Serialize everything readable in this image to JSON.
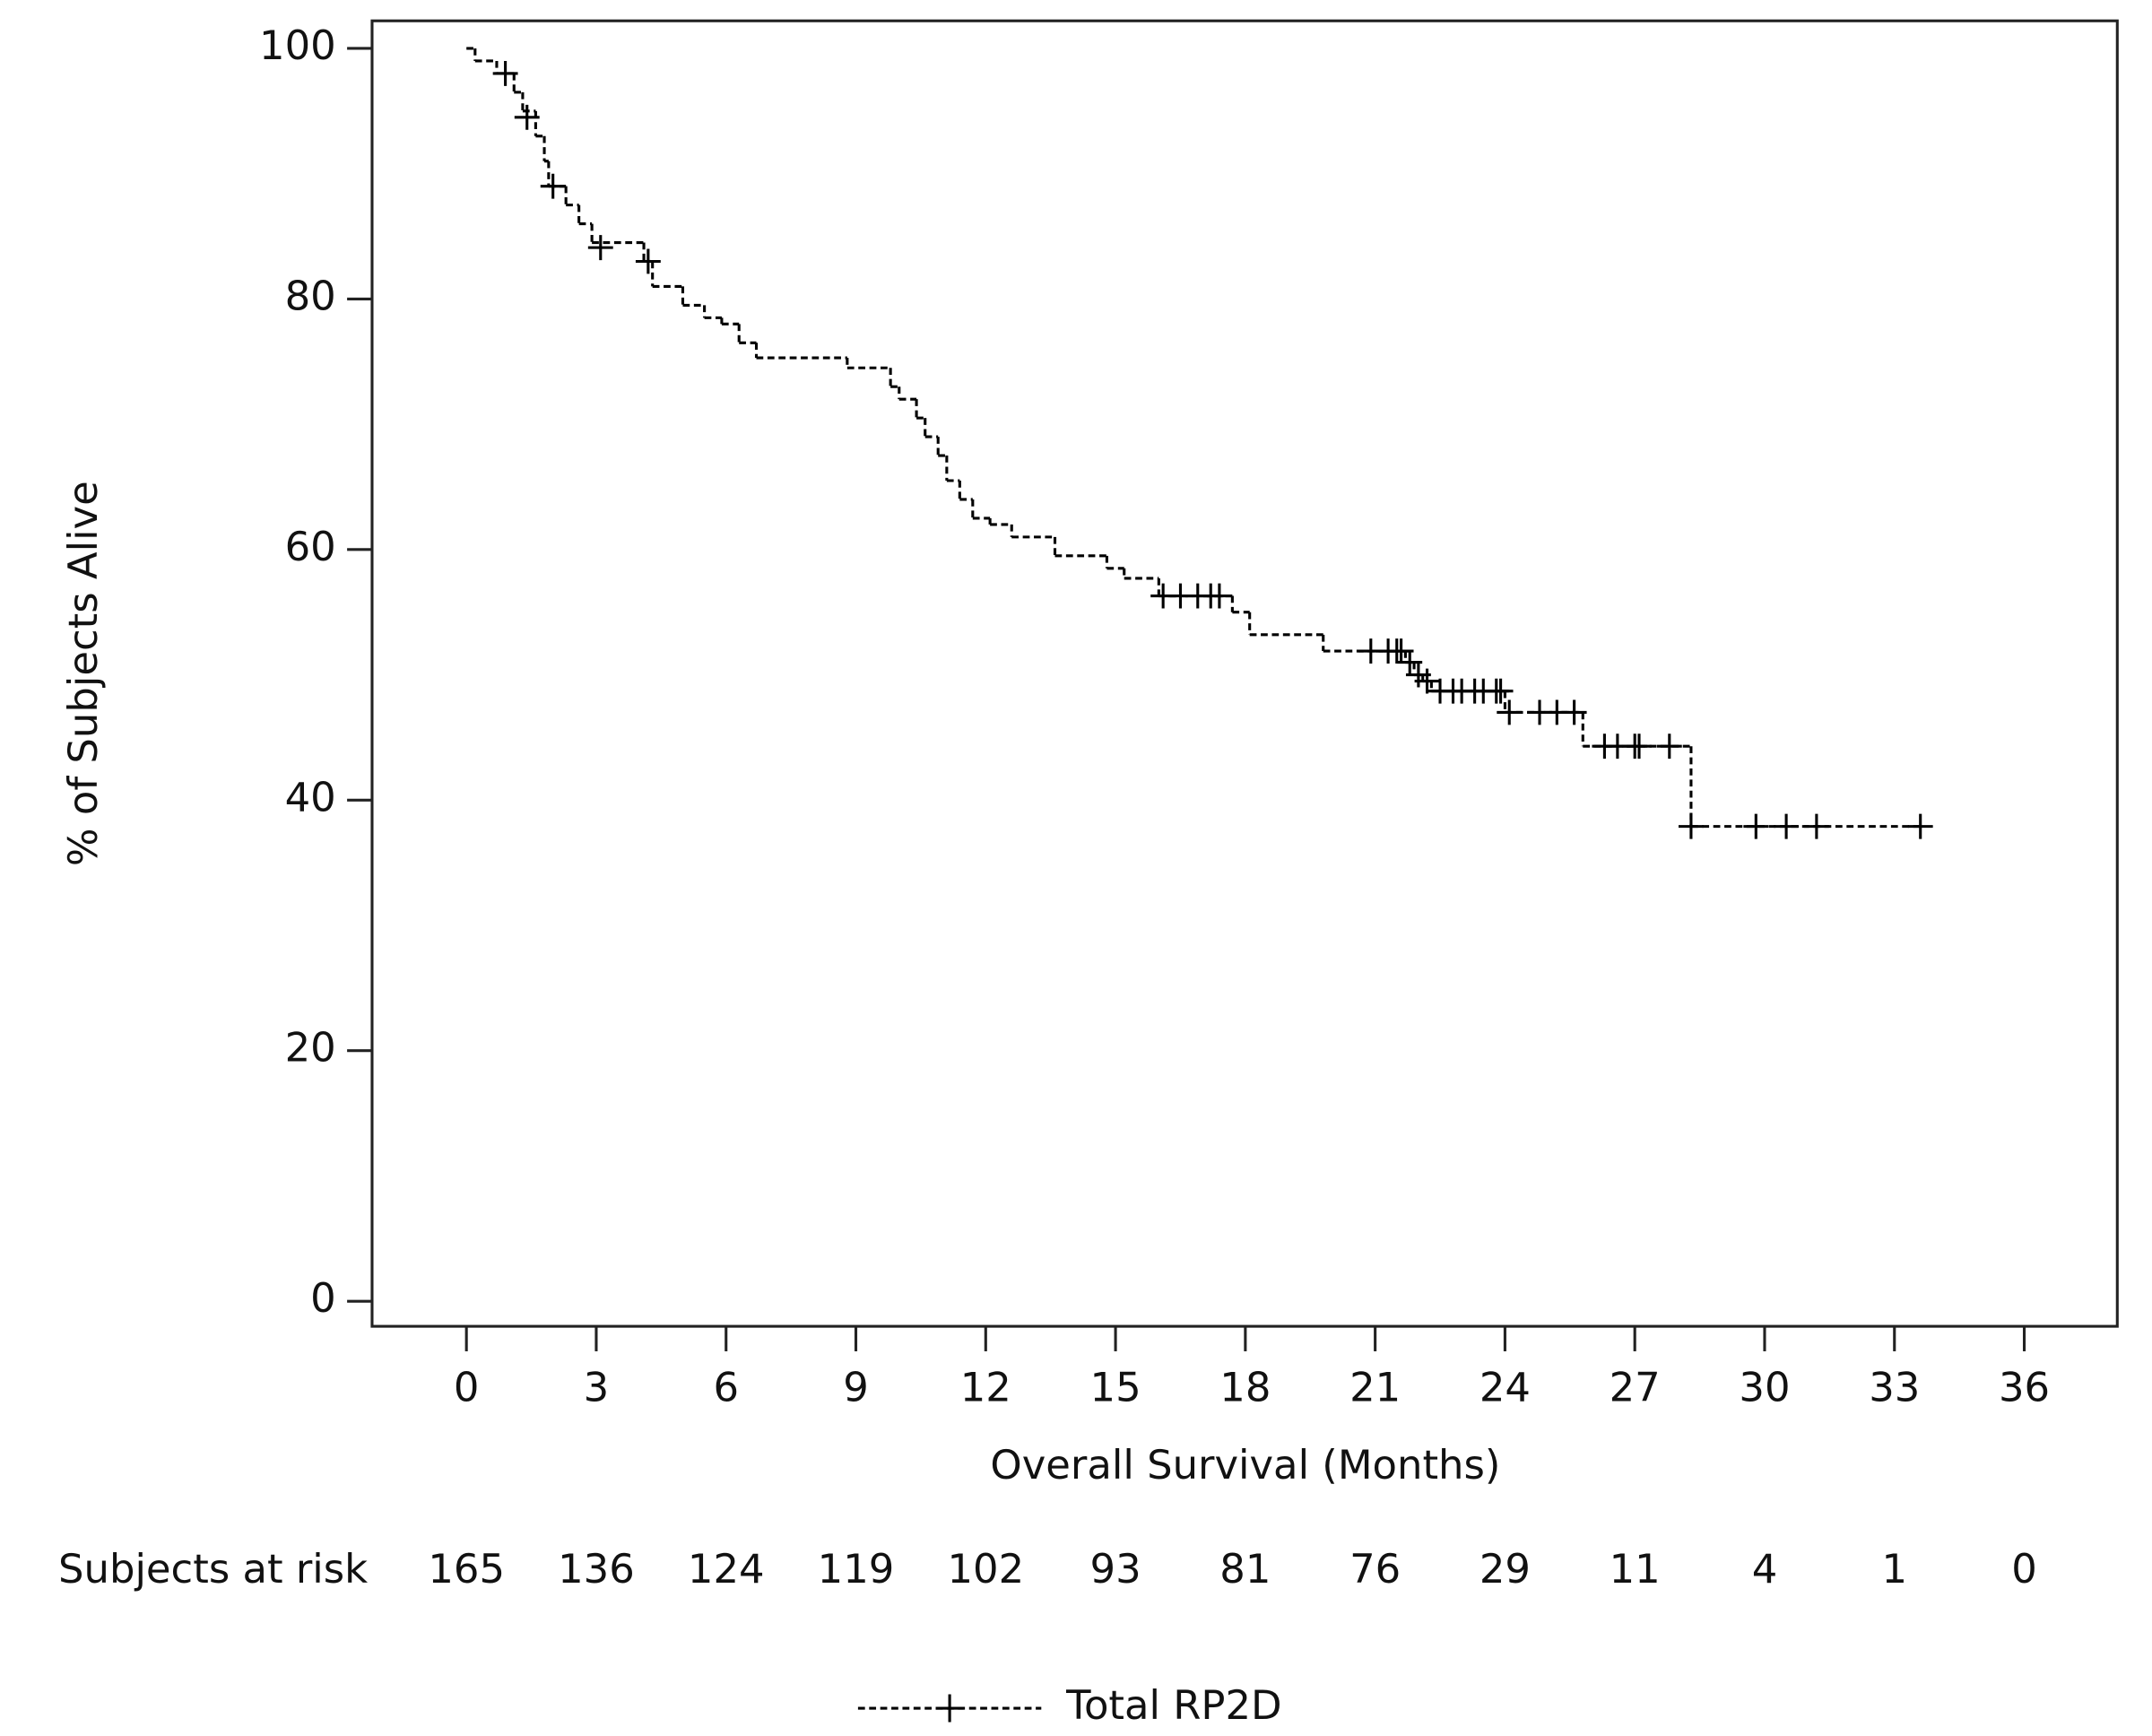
{
  "chart_data": {
    "type": "step",
    "xlabel": "Overall Survival (Months)",
    "ylabel": "% of Subjects Alive",
    "xlim": [
      -2.18,
      38.15
    ],
    "ylim": [
      -2.0,
      102.2
    ],
    "xticks": [
      0,
      3,
      6,
      9,
      12,
      15,
      18,
      21,
      24,
      27,
      30,
      33,
      36
    ],
    "yticks": [
      0,
      20,
      40,
      60,
      80,
      100
    ],
    "series": [
      {
        "name": "Total RP2D",
        "color": "#000000",
        "x": [
          0,
          0.2,
          0.7,
          1.1,
          1.3,
          1.6,
          1.8,
          1.9,
          2.3,
          2.6,
          2.9,
          4.1,
          4.3,
          5.0,
          5.5,
          5.9,
          6.3,
          6.7,
          8.8,
          9.8,
          10.0,
          10.4,
          10.6,
          10.9,
          11.1,
          11.4,
          11.7,
          12.1,
          12.6,
          13.6,
          14.8,
          15.2,
          16.0,
          17.7,
          18.1,
          19.8,
          21.7,
          21.9,
          22.1,
          22.3,
          24.0,
          25.8,
          28.3,
          33.6
        ],
        "values": [
          100,
          99,
          98,
          96.5,
          95,
          93,
          91,
          89,
          87.5,
          86,
          84.5,
          83,
          81,
          79.5,
          78.5,
          78,
          76.5,
          75.3,
          74.5,
          73,
          72,
          70.5,
          69,
          67.5,
          65.5,
          64,
          62.5,
          62,
          61,
          59.5,
          58.5,
          57.7,
          56.3,
          55,
          53.2,
          51.9,
          51,
          50,
          49.5,
          48.7,
          47,
          44.3,
          37.9,
          37.9
        ],
        "censor_x": [
          0.9,
          1.4,
          2.0,
          3.1,
          4.2,
          16.1,
          16.5,
          16.9,
          17.2,
          17.4,
          20.9,
          21.3,
          21.5,
          21.6,
          21.8,
          22.0,
          22.2,
          22.5,
          22.8,
          23.0,
          23.3,
          23.5,
          23.8,
          23.9,
          24.1,
          24.8,
          25.2,
          25.6,
          26.3,
          26.6,
          27.0,
          27.1,
          27.8,
          28.3,
          29.8,
          30.5,
          31.2,
          33.6
        ],
        "censor_values": [
          98,
          94.5,
          89,
          84.1,
          83,
          56.3,
          56.3,
          56.3,
          56.3,
          56.3,
          51.9,
          51.9,
          51.9,
          51.9,
          51,
          50,
          49.5,
          48.7,
          48.7,
          48.7,
          48.7,
          48.7,
          48.7,
          48.7,
          47,
          47,
          47,
          47,
          44.3,
          44.3,
          44.3,
          44.3,
          44.3,
          37.9,
          37.9,
          37.9,
          37.9,
          37.9
        ]
      }
    ],
    "risk_table": {
      "label": "Subjects at risk",
      "values": [
        165,
        136,
        124,
        119,
        102,
        93,
        81,
        76,
        29,
        11,
        4,
        1,
        0
      ]
    }
  }
}
